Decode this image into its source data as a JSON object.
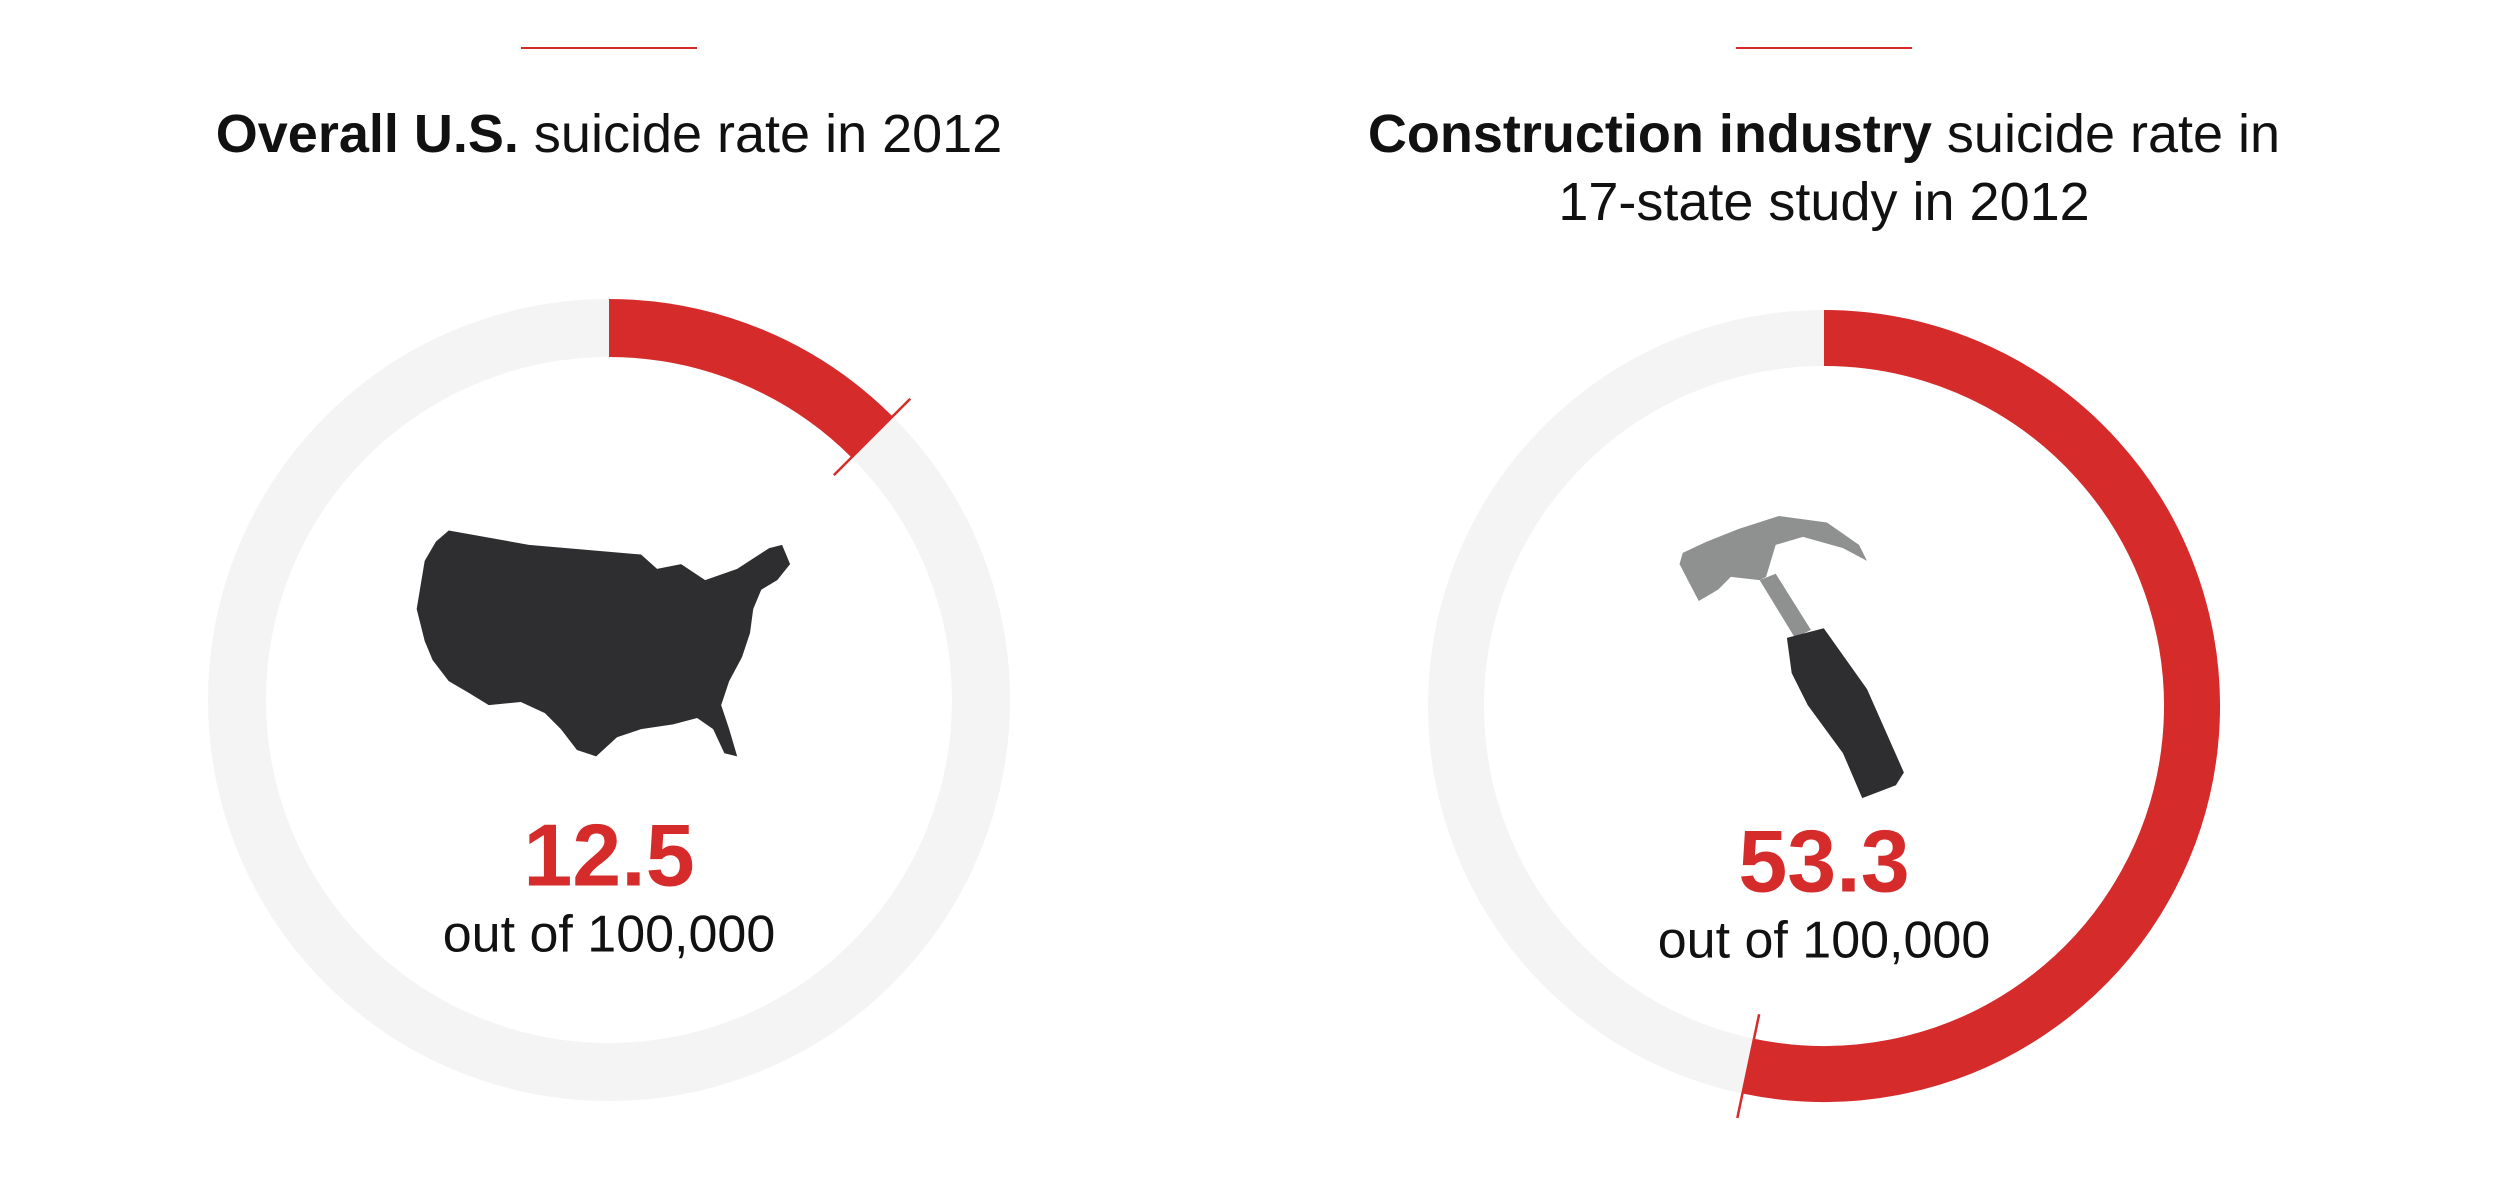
{
  "chart_data": [
    {
      "type": "gauge",
      "title_bold": "Overall U.S.",
      "title": "suicide rate in 2012",
      "value": 12.5,
      "unit_label": "out of 100,000",
      "ylim": [
        0,
        100
      ],
      "color": "#d62b2b",
      "track_color": "#f4f4f4"
    },
    {
      "type": "gauge",
      "title_bold": "Construction industry",
      "title": "suicide rate in 17-state study in 2012",
      "value": 53.3,
      "unit_label": "out of 100,000",
      "ylim": [
        0,
        100
      ],
      "color": "#d62b2b",
      "track_color": "#f4f4f4"
    }
  ]
}
